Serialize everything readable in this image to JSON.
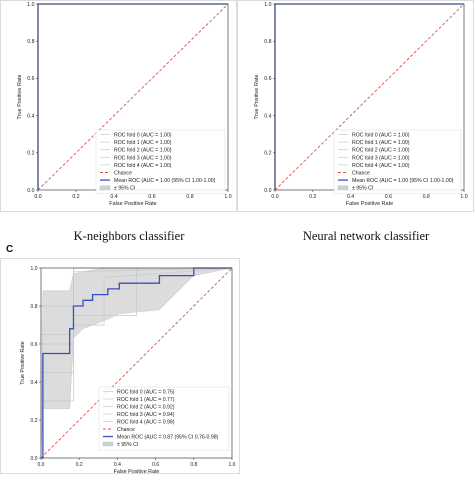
{
  "panel_c_letter": "C",
  "panels": [
    {
      "caption": "K-neighbors classifier",
      "xlabel": "False Positive Rate",
      "ylabel": "True Positive Rate"
    },
    {
      "caption": "Neural network classifier",
      "xlabel": "False Positive Rate",
      "ylabel": "True Positive Rate"
    },
    {
      "caption": "",
      "xlabel": "False Positive Rate",
      "ylabel": "True Positive Rate"
    }
  ],
  "colors": {
    "mean": "#3a4fbf",
    "chance": "#d9534f",
    "folds": "#c8c8c8",
    "ci": "#d0d0d0",
    "axis": "#444444"
  },
  "chart_data": [
    {
      "type": "line",
      "xlabel": "False Positive Rate",
      "ylabel": "True Positive Rate",
      "xlim": [
        0,
        1
      ],
      "ylim": [
        0,
        1
      ],
      "xticks": [
        "0.0",
        "0.2",
        "0.4",
        "0.6",
        "0.8",
        "1.0"
      ],
      "yticks": [
        "0.0",
        "0.2",
        "0.4",
        "0.6",
        "0.8",
        "1.0"
      ],
      "legend_position": "lower-right",
      "series": [
        {
          "name": "ROC fold 0 (AUC = 1.00)",
          "x": [
            0,
            0,
            1
          ],
          "y": [
            0,
            1,
            1
          ]
        },
        {
          "name": "ROC fold 1 (AUC = 1.00)",
          "x": [
            0,
            0,
            1
          ],
          "y": [
            0,
            1,
            1
          ]
        },
        {
          "name": "ROC fold 2 (AUC = 1.00)",
          "x": [
            0,
            0,
            1
          ],
          "y": [
            0,
            1,
            1
          ]
        },
        {
          "name": "ROC fold 3 (AUC = 1.00)",
          "x": [
            0,
            0,
            1
          ],
          "y": [
            0,
            1,
            1
          ]
        },
        {
          "name": "ROC fold 4 (AUC = 1.00)",
          "x": [
            0,
            0,
            1
          ],
          "y": [
            0,
            1,
            1
          ]
        },
        {
          "name": "Chance",
          "x": [
            0,
            1
          ],
          "y": [
            0,
            1
          ]
        },
        {
          "name": "Mean ROC (AUC = 1.00 (95% CI 1.00-1.00)",
          "x": [
            0,
            0,
            1
          ],
          "y": [
            0,
            1,
            1
          ]
        },
        {
          "name": "± 95% CI",
          "x": [
            0,
            1
          ],
          "lower": [
            1,
            1
          ],
          "upper": [
            1,
            1
          ]
        }
      ]
    },
    {
      "type": "line",
      "xlabel": "False Positive Rate",
      "ylabel": "True Positive Rate",
      "xlim": [
        0,
        1
      ],
      "ylim": [
        0,
        1
      ],
      "xticks": [
        "0.0",
        "0.2",
        "0.4",
        "0.6",
        "0.8",
        "1.0"
      ],
      "yticks": [
        "0.0",
        "0.2",
        "0.4",
        "0.6",
        "0.8",
        "1.0"
      ],
      "legend_position": "lower-right",
      "series": [
        {
          "name": "ROC fold 0 (AUC = 1.00)",
          "x": [
            0,
            0,
            1
          ],
          "y": [
            0,
            1,
            1
          ]
        },
        {
          "name": "ROC fold 1 (AUC = 1.00)",
          "x": [
            0,
            0,
            1
          ],
          "y": [
            0,
            1,
            1
          ]
        },
        {
          "name": "ROC fold 2 (AUC = 1.00)",
          "x": [
            0,
            0,
            1
          ],
          "y": [
            0,
            1,
            1
          ]
        },
        {
          "name": "ROC fold 3 (AUC = 1.00)",
          "x": [
            0,
            0,
            1
          ],
          "y": [
            0,
            1,
            1
          ]
        },
        {
          "name": "ROC fold 4 (AUC = 1.00)",
          "x": [
            0,
            0,
            1
          ],
          "y": [
            0,
            1,
            1
          ]
        },
        {
          "name": "Chance",
          "x": [
            0,
            1
          ],
          "y": [
            0,
            1
          ]
        },
        {
          "name": "Mean ROC (AUC = 1.00 (95% CI 1.00-1.00)",
          "x": [
            0,
            0,
            1
          ],
          "y": [
            0,
            1,
            1
          ]
        },
        {
          "name": "± 95% CI",
          "x": [
            0,
            1
          ],
          "lower": [
            1,
            1
          ],
          "upper": [
            1,
            1
          ]
        }
      ]
    },
    {
      "type": "line",
      "xlabel": "False Positive Rate",
      "ylabel": "True Positive Rate",
      "xlim": [
        0,
        1
      ],
      "ylim": [
        0,
        1
      ],
      "xticks": [
        "0.0",
        "0.2",
        "0.4",
        "0.6",
        "0.8",
        "1.0"
      ],
      "yticks": [
        "0.0",
        "0.2",
        "0.4",
        "0.6",
        "0.8",
        "1.0"
      ],
      "legend_position": "lower-right",
      "series": [
        {
          "name": "ROC fold 0 (AUC = 0.75)",
          "x": [
            0,
            0,
            0.17,
            0.17,
            0.5,
            0.5,
            1
          ],
          "y": [
            0,
            0.45,
            0.45,
            0.75,
            0.75,
            1,
            1
          ]
        },
        {
          "name": "ROC fold 1 (AUC = 0.77)",
          "x": [
            0,
            0,
            0.17,
            0.17,
            0.33,
            0.33,
            1
          ],
          "y": [
            0,
            0.3,
            0.3,
            0.7,
            0.7,
            0.95,
            1
          ]
        },
        {
          "name": "ROC fold 2 (AUC = 0.92)",
          "x": [
            0,
            0,
            0.17,
            0.17,
            1
          ],
          "y": [
            0,
            0.6,
            0.6,
            1,
            1
          ]
        },
        {
          "name": "ROC fold 3 (AUC = 0.94)",
          "x": [
            0,
            0,
            0.17,
            0.17,
            1
          ],
          "y": [
            0,
            0.65,
            0.65,
            0.98,
            1
          ]
        },
        {
          "name": "ROC fold 4 (AUC = 0.98)",
          "x": [
            0,
            0,
            0.17,
            0.17,
            1
          ],
          "y": [
            0,
            0.8,
            0.8,
            1,
            1
          ]
        },
        {
          "name": "Chance",
          "x": [
            0,
            1
          ],
          "y": [
            0,
            1
          ]
        },
        {
          "name": "Mean ROC (AUC = 0.87 (95% CI 0.76-0.98)",
          "x": [
            0,
            0.01,
            0.01,
            0.15,
            0.15,
            0.17,
            0.17,
            0.22,
            0.22,
            0.27,
            0.27,
            0.35,
            0.35,
            0.41,
            0.41,
            0.62,
            0.62,
            0.8,
            0.8,
            1.0
          ],
          "y": [
            0,
            0,
            0.55,
            0.55,
            0.68,
            0.68,
            0.8,
            0.8,
            0.83,
            0.83,
            0.86,
            0.86,
            0.89,
            0.89,
            0.92,
            0.92,
            0.96,
            0.96,
            1.0,
            1.0
          ]
        },
        {
          "name": "± 95% CI",
          "x": [
            0,
            0.01,
            0.15,
            0.17,
            0.22,
            0.27,
            0.35,
            0.41,
            0.62,
            0.8,
            1.0
          ],
          "lower": [
            0,
            0.26,
            0.26,
            0.63,
            0.68,
            0.7,
            0.73,
            0.76,
            0.78,
            0.96,
            1.0
          ],
          "upper": [
            0,
            0.88,
            0.88,
            0.97,
            0.98,
            0.99,
            1.0,
            1.0,
            1.0,
            1.0,
            1.0
          ]
        }
      ]
    }
  ]
}
